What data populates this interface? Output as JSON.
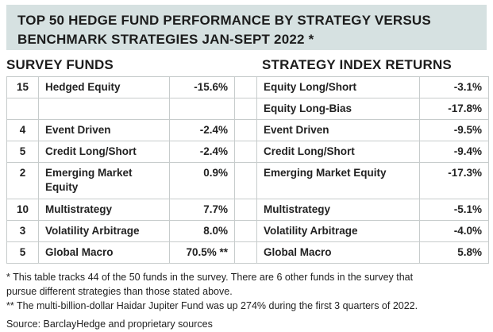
{
  "colors": {
    "banner_bg": "#d6e1e1",
    "border_color": "#c7cccc",
    "text_color": "#1c1c1c",
    "page_bg": "#ffffff"
  },
  "banner": {
    "title_line1": "TOP 50 HEDGE FUND PERFORMANCE BY STRATEGY VERSUS",
    "title_line2": "BENCHMARK STRATEGIES JAN-SEPT 2022 *"
  },
  "section_headers": {
    "left": "SURVEY FUNDS",
    "right": "STRATEGY INDEX RETURNS"
  },
  "table": {
    "rows": [
      {
        "count": "15",
        "fund": "Hedged Equity",
        "fund_return": "-15.6%",
        "index": "Equity Long/Short",
        "index_return": "-3.1%",
        "tall": false
      },
      {
        "count": "",
        "fund": "",
        "fund_return": "",
        "index": "Equity Long-Bias",
        "index_return": "-17.8%",
        "tall": false
      },
      {
        "count": "4",
        "fund": "Event Driven",
        "fund_return": "-2.4%",
        "index": "Event Driven",
        "index_return": "-9.5%",
        "tall": false
      },
      {
        "count": "5",
        "fund": "Credit Long/Short",
        "fund_return": "-2.4%",
        "index": "Credit Long/Short",
        "index_return": "-9.4%",
        "tall": false
      },
      {
        "count": "2",
        "fund": "Emerging Market Equity",
        "fund_return": "0.9%",
        "index": "Emerging Market Equity",
        "index_return": "-17.3%",
        "tall": true
      },
      {
        "count": "10",
        "fund": "Multistrategy",
        "fund_return": "7.7%",
        "index": "Multistrategy",
        "index_return": "-5.1%",
        "tall": false
      },
      {
        "count": "3",
        "fund": "Volatility Arbitrage",
        "fund_return": "8.0%",
        "index": "Volatility Arbitrage",
        "index_return": "-4.0%",
        "tall": false
      },
      {
        "count": "5",
        "fund": "Global Macro",
        "fund_return": "70.5% **",
        "index": "Global Macro",
        "index_return": "5.8%",
        "tall": false
      }
    ]
  },
  "footnotes": {
    "fn1": "* This table tracks 44 of the 50 funds in the survey.  There are 6 other funds in the survey that pursue different strategies than those stated above.",
    "fn2": "** The multi-billion-dollar Haidar Jupiter Fund was up 274% during the first 3 quarters of 2022.",
    "source": "Source: BarclayHedge and proprietary sources"
  },
  "chart_data": {
    "type": "table",
    "title": "Top 50 Hedge Fund Performance by Strategy versus Benchmark Strategies Jan-Sept 2022",
    "tables": [
      {
        "name": "SURVEY FUNDS",
        "columns": [
          "fund_count",
          "strategy",
          "return_pct"
        ],
        "rows": [
          [
            15,
            "Hedged Equity",
            -15.6
          ],
          [
            null,
            "",
            null
          ],
          [
            4,
            "Event Driven",
            -2.4
          ],
          [
            5,
            "Credit Long/Short",
            -2.4
          ],
          [
            2,
            "Emerging Market Equity",
            0.9
          ],
          [
            10,
            "Multistrategy",
            7.7
          ],
          [
            3,
            "Volatility Arbitrage",
            8.0
          ],
          [
            5,
            "Global Macro",
            70.5
          ]
        ]
      },
      {
        "name": "STRATEGY INDEX RETURNS",
        "columns": [
          "strategy",
          "return_pct"
        ],
        "rows": [
          [
            "Equity Long/Short",
            -3.1
          ],
          [
            "Equity Long-Bias",
            -17.8
          ],
          [
            "Event Driven",
            -9.5
          ],
          [
            "Credit Long/Short",
            -9.4
          ],
          [
            "Emerging Market Equity",
            -17.3
          ],
          [
            "Multistrategy",
            -5.1
          ],
          [
            "Volatility Arbitrage",
            -4.0
          ],
          [
            "Global Macro",
            5.8
          ]
        ]
      }
    ]
  }
}
